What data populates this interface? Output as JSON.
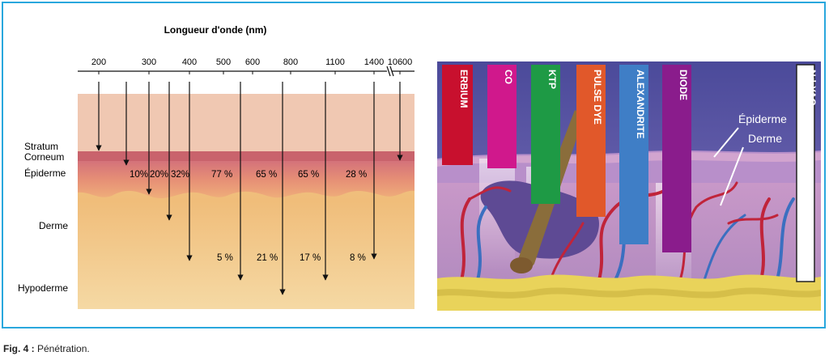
{
  "title": "Longueur d'onde (nm)",
  "wavelengths": [
    "200",
    "300",
    "400",
    "500",
    "600",
    "800",
    "1100",
    "1400",
    "10600"
  ],
  "layers": {
    "stratum": "Stratum",
    "corneum": "Corneum",
    "epiderme": "Épiderme",
    "derme": "Derme",
    "hypoderme": "Hypoderme"
  },
  "epidermis_pct": [
    "10%",
    "20%",
    "32%",
    "77 %",
    "65 %",
    "65 %",
    "28 %"
  ],
  "dermis_pct": [
    "5 %",
    "21 %",
    "17 %",
    "8 %"
  ],
  "lasers": [
    {
      "name": "ERBIUM",
      "color": "#c8102e"
    },
    {
      "name": "CO",
      "color": "#d0188c"
    },
    {
      "name": "KTP",
      "color": "#1e9a45"
    },
    {
      "name": "PULSE DYE",
      "color": "#e1582a"
    },
    {
      "name": "ALEXANDRITE",
      "color": "#3f7ec6"
    },
    {
      "name": "DIODE",
      "color": "#8a1c8c"
    },
    {
      "name": "Nd:YAG",
      "color": "#ffffff"
    }
  ],
  "illustration_labels": {
    "epiderme": "Épiderme",
    "derme": "Derme"
  },
  "caption": {
    "prefix": "Fig. 4 :",
    "text": " Pénétration."
  }
}
